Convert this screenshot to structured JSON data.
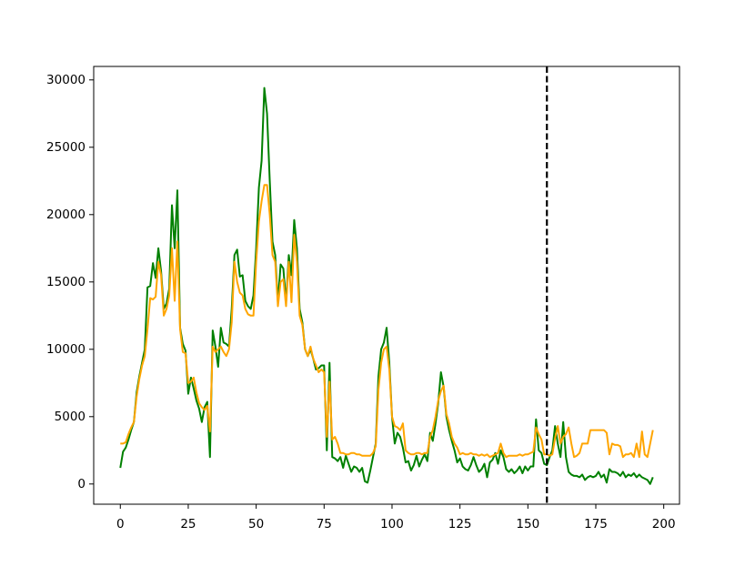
{
  "chart_data": {
    "type": "line",
    "x": [
      0,
      1,
      2,
      3,
      4,
      5,
      6,
      7,
      8,
      9,
      10,
      11,
      12,
      13,
      14,
      15,
      16,
      17,
      18,
      19,
      20,
      21,
      22,
      23,
      24,
      25,
      26,
      27,
      28,
      29,
      30,
      31,
      32,
      33,
      34,
      35,
      36,
      37,
      38,
      39,
      40,
      41,
      42,
      43,
      44,
      45,
      46,
      47,
      48,
      49,
      50,
      51,
      52,
      53,
      54,
      55,
      56,
      57,
      58,
      59,
      60,
      61,
      62,
      63,
      64,
      65,
      66,
      67,
      68,
      69,
      70,
      71,
      72,
      73,
      74,
      75,
      76,
      77,
      78,
      79,
      80,
      81,
      82,
      83,
      84,
      85,
      86,
      87,
      88,
      89,
      90,
      91,
      92,
      93,
      94,
      95,
      96,
      97,
      98,
      99,
      100,
      101,
      102,
      103,
      104,
      105,
      106,
      107,
      108,
      109,
      110,
      111,
      112,
      113,
      114,
      115,
      116,
      117,
      118,
      119,
      120,
      121,
      122,
      123,
      124,
      125,
      126,
      127,
      128,
      129,
      130,
      131,
      132,
      133,
      134,
      135,
      136,
      137,
      138,
      139,
      140,
      141,
      142,
      143,
      144,
      145,
      146,
      147,
      148,
      149,
      150,
      151,
      152,
      153,
      154,
      155,
      156,
      157,
      158,
      159,
      160,
      161,
      162,
      163,
      164,
      165,
      166,
      167,
      168,
      169,
      170,
      171,
      172,
      173,
      174,
      175,
      176,
      177,
      178,
      179,
      180,
      181,
      182,
      183,
      184,
      185,
      186,
      187,
      188,
      189,
      190,
      191,
      192,
      193,
      194,
      195,
      196
    ],
    "series": [
      {
        "color": "#008000",
        "values": [
          1200,
          2400,
          2700,
          3300,
          4000,
          4600,
          6800,
          8000,
          9000,
          10000,
          14600,
          14700,
          16400,
          15300,
          17500,
          15800,
          13000,
          13400,
          14500,
          20700,
          17500,
          21800,
          11600,
          10400,
          9900,
          6700,
          7900,
          7100,
          6200,
          5600,
          4600,
          5700,
          6100,
          2000,
          11400,
          10200,
          8700,
          11600,
          10500,
          10400,
          10200,
          13000,
          17000,
          17400,
          15400,
          15500,
          13600,
          13200,
          13000,
          14000,
          17500,
          22000,
          24000,
          29400,
          27500,
          22500,
          18000,
          17000,
          13500,
          16300,
          16000,
          13500,
          17000,
          15500,
          19600,
          17500,
          13000,
          12000,
          10000,
          9500,
          10000,
          9300,
          8500,
          8600,
          8800,
          8800,
          2500,
          9000,
          2000,
          1900,
          1700,
          2000,
          1200,
          2100,
          1500,
          900,
          1300,
          1200,
          900,
          1200,
          200,
          100,
          1000,
          2000,
          3000,
          8000,
          10000,
          10500,
          11600,
          9000,
          5000,
          3000,
          3800,
          3500,
          2700,
          1600,
          1700,
          1000,
          1400,
          2100,
          1300,
          1800,
          2200,
          1700,
          3800,
          3200,
          4500,
          6000,
          8300,
          7200,
          5000,
          4000,
          3200,
          2500,
          1600,
          1900,
          1300,
          1100,
          1000,
          1400,
          2000,
          1400,
          900,
          1100,
          1500,
          500,
          1600,
          1800,
          2300,
          1500,
          2500,
          2000,
          1100,
          900,
          1100,
          800,
          1000,
          1300,
          800,
          1300,
          1000,
          1300,
          1300,
          4800,
          2500,
          2300,
          1500,
          1400,
          2000,
          2500,
          4300,
          3000,
          2000,
          4600,
          2000,
          900,
          700,
          600,
          600,
          500,
          700,
          300,
          500,
          600,
          500,
          600,
          900,
          500,
          700,
          100,
          1100,
          900,
          900,
          800,
          600,
          900,
          500,
          700,
          600,
          800,
          500,
          700,
          500,
          400,
          300,
          0,
          500
        ]
      },
      {
        "color": "#ffa500",
        "values": [
          3000,
          3000,
          3100,
          3700,
          4200,
          4600,
          6500,
          7800,
          8800,
          9500,
          11500,
          13800,
          13700,
          13900,
          16500,
          15500,
          12500,
          13000,
          14000,
          17500,
          13600,
          18000,
          11500,
          9800,
          9700,
          7500,
          7600,
          7900,
          6800,
          6000,
          5700,
          5500,
          5800,
          3900,
          10200,
          9800,
          10000,
          10200,
          9800,
          9500,
          10000,
          12000,
          16500,
          15000,
          14200,
          14000,
          13000,
          12600,
          12500,
          12500,
          16500,
          19500,
          21000,
          22200,
          22200,
          20000,
          17000,
          16500,
          13200,
          15000,
          15200,
          13200,
          16500,
          13500,
          18500,
          16500,
          12500,
          11800,
          10000,
          9500,
          10200,
          9300,
          8800,
          8300,
          8500,
          8300,
          3500,
          7600,
          3300,
          3500,
          3000,
          2300,
          2300,
          2200,
          2200,
          2300,
          2300,
          2200,
          2200,
          2100,
          2100,
          2100,
          2100,
          2300,
          2800,
          7000,
          9000,
          10000,
          10200,
          8500,
          5000,
          4300,
          4200,
          4000,
          4500,
          2500,
          2300,
          2200,
          2200,
          2300,
          2300,
          2200,
          2300,
          2300,
          3500,
          4000,
          5000,
          6200,
          6900,
          7300,
          5200,
          4500,
          3500,
          3000,
          2700,
          2200,
          2300,
          2200,
          2200,
          2300,
          2200,
          2200,
          2100,
          2200,
          2100,
          2200,
          2000,
          2100,
          2200,
          2300,
          3000,
          2300,
          2000,
          2100,
          2100,
          2100,
          2100,
          2200,
          2100,
          2200,
          2200,
          2300,
          2400,
          4200,
          3700,
          3300,
          2200,
          2200,
          2100,
          2200,
          3400,
          4300,
          3000,
          3500,
          3700,
          4200,
          3000,
          2000,
          2100,
          2300,
          3000,
          3000,
          3000,
          4000,
          4000,
          4000,
          4000,
          4000,
          4000,
          3800,
          2200,
          3000,
          2900,
          2900,
          2800,
          2000,
          2200,
          2200,
          2300,
          2000,
          3000,
          2000,
          3900,
          2200,
          2000,
          3000,
          4000
        ]
      }
    ],
    "vline_x": 157,
    "vline_color": "#000000",
    "xlim": [
      -9.8,
      205.8
    ],
    "xticks": [
      0,
      25,
      50,
      75,
      100,
      125,
      150,
      175,
      200
    ],
    "ylim": [
      -1500,
      31000
    ],
    "yticks": [
      0,
      5000,
      10000,
      15000,
      20000,
      25000,
      30000
    ],
    "grid": false
  }
}
